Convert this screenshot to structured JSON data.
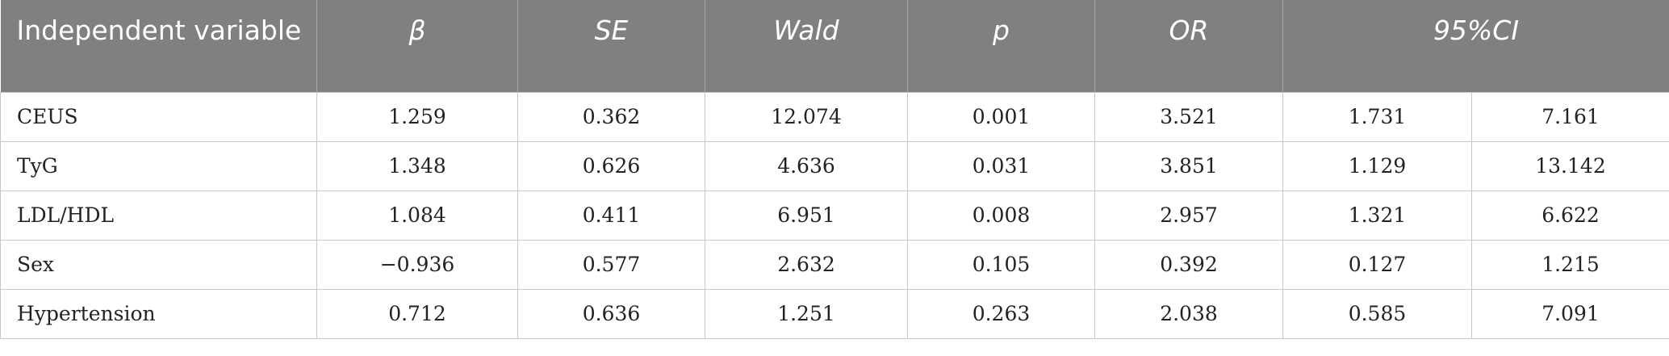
{
  "table": {
    "headers": [
      "Independent variable",
      "β",
      "SE",
      "Wald",
      "p",
      "OR",
      "95%CI"
    ],
    "rows": [
      [
        "CEUS",
        "1.259",
        "0.362",
        "12.074",
        "0.001",
        "3.521",
        "1.731",
        "7.161"
      ],
      [
        "TyG",
        "1.348",
        "0.626",
        "4.636",
        "0.031",
        "3.851",
        "1.129",
        "13.142"
      ],
      [
        "LDL/HDL",
        "1.084",
        "0.411",
        "6.951",
        "0.008",
        "2.957",
        "1.321",
        "6.622"
      ],
      [
        "Sex",
        "−0.936",
        "0.577",
        "2.632",
        "0.105",
        "0.392",
        "0.127",
        "1.215"
      ],
      [
        "Hypertension",
        "0.712",
        "0.636",
        "1.251",
        "0.263",
        "2.038",
        "0.585",
        "7.091"
      ]
    ]
  }
}
